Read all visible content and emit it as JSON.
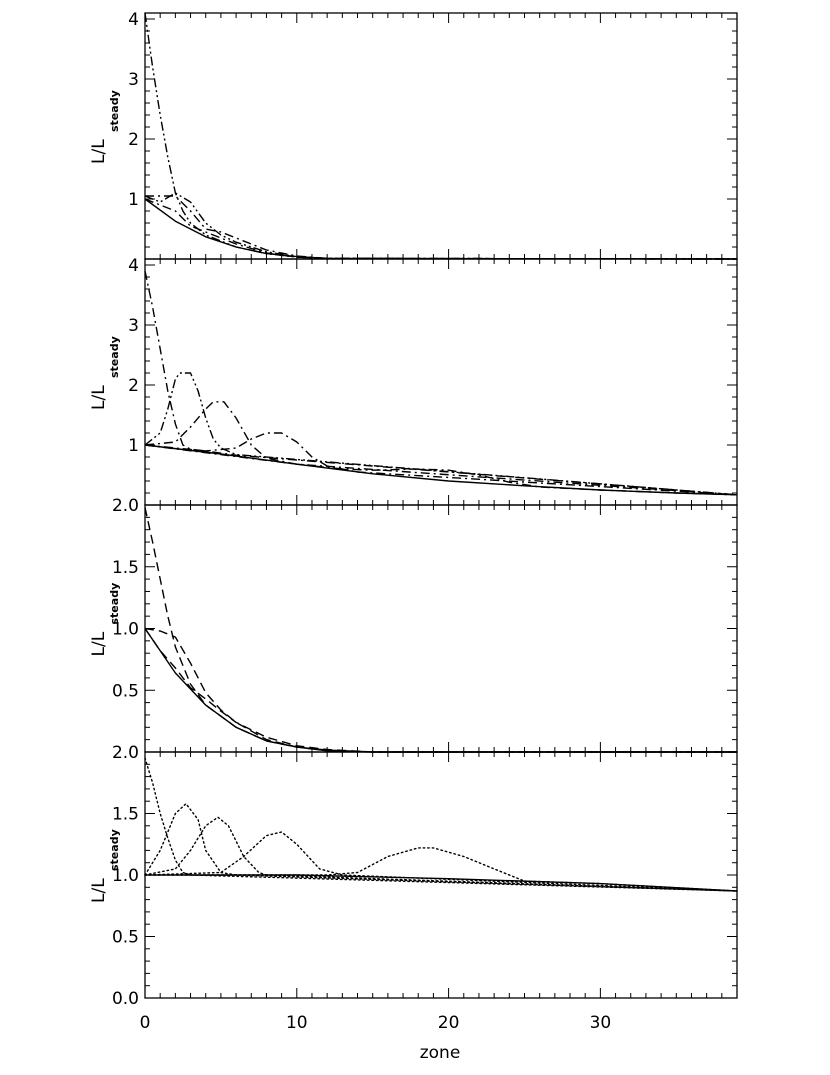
{
  "chart_data": {
    "type": "line",
    "xlabel": "zone",
    "xlim": [
      0,
      39
    ],
    "x_ticks": [
      0,
      10,
      20,
      30
    ],
    "panels": [
      {
        "ylabel": "L/L",
        "ylabel_sub": "steady",
        "ylim": [
          0,
          4.1
        ],
        "y_ticks": [
          "1",
          "2",
          "3",
          "4"
        ],
        "y_tick_values": [
          1,
          2,
          3,
          4
        ],
        "series": [
          {
            "style": "solid",
            "points": [
              [
                0,
                1.0
              ],
              [
                2,
                0.63
              ],
              [
                4,
                0.37
              ],
              [
                6,
                0.2
              ],
              [
                8,
                0.09
              ],
              [
                10,
                0.04
              ],
              [
                12,
                0.01
              ],
              [
                39,
                0.0
              ]
            ]
          },
          {
            "style": "dash-dot",
            "points": [
              [
                0,
                1.0
              ],
              [
                1,
                0.9
              ],
              [
                2,
                0.8
              ],
              [
                3,
                0.55
              ],
              [
                4,
                0.45
              ],
              [
                6,
                0.25
              ],
              [
                8,
                0.1
              ],
              [
                10,
                0.03
              ],
              [
                12,
                0.01
              ],
              [
                39,
                0.0
              ]
            ]
          },
          {
            "style": "dash-dot",
            "points": [
              [
                0,
                1.05
              ],
              [
                1,
                1.05
              ],
              [
                2,
                1.05
              ],
              [
                3,
                0.8
              ],
              [
                4,
                0.5
              ],
              [
                5,
                0.45
              ],
              [
                6,
                0.35
              ],
              [
                8,
                0.15
              ],
              [
                10,
                0.05
              ],
              [
                12,
                0.01
              ],
              [
                39,
                0.0
              ]
            ]
          },
          {
            "style": "dash-dot-dot",
            "points": [
              [
                0,
                1.05
              ],
              [
                1,
                0.95
              ],
              [
                2,
                1.1
              ],
              [
                3,
                0.95
              ],
              [
                4,
                0.6
              ],
              [
                5,
                0.4
              ],
              [
                6,
                0.28
              ],
              [
                8,
                0.12
              ],
              [
                10,
                0.04
              ],
              [
                12,
                0.01
              ],
              [
                39,
                0.0
              ]
            ]
          },
          {
            "style": "dash-dot-dot",
            "points": [
              [
                0,
                4.1
              ],
              [
                0.5,
                3.2
              ],
              [
                1,
                2.4
              ],
              [
                1.5,
                1.7
              ],
              [
                2,
                1.1
              ],
              [
                2.5,
                0.8
              ],
              [
                3,
                0.6
              ],
              [
                4,
                0.4
              ],
              [
                6,
                0.2
              ],
              [
                8,
                0.09
              ],
              [
                10,
                0.03
              ],
              [
                12,
                0.01
              ],
              [
                39,
                0.0
              ]
            ]
          }
        ]
      },
      {
        "ylabel": "L/L",
        "ylabel_sub": "steady",
        "ylim": [
          0,
          4.1
        ],
        "y_ticks": [
          "1",
          "2",
          "3",
          "4"
        ],
        "y_tick_values": [
          1,
          2,
          3,
          4
        ],
        "series": [
          {
            "style": "solid",
            "points": [
              [
                0,
                1.0
              ],
              [
                5,
                0.85
              ],
              [
                10,
                0.68
              ],
              [
                15,
                0.52
              ],
              [
                20,
                0.4
              ],
              [
                25,
                0.32
              ],
              [
                30,
                0.25
              ],
              [
                35,
                0.2
              ],
              [
                39,
                0.17
              ]
            ]
          },
          {
            "style": "dash-dot",
            "points": [
              [
                0,
                3.9
              ],
              [
                0.5,
                3.3
              ],
              [
                1,
                2.6
              ],
              [
                1.5,
                1.9
              ],
              [
                2,
                1.35
              ],
              [
                2.5,
                1.0
              ],
              [
                3,
                0.93
              ],
              [
                4,
                0.9
              ],
              [
                6,
                0.83
              ],
              [
                39,
                0.17
              ]
            ]
          },
          {
            "style": "dash-dot-dot",
            "points": [
              [
                0,
                1.0
              ],
              [
                1,
                1.2
              ],
              [
                1.5,
                1.6
              ],
              [
                2,
                2.1
              ],
              [
                2.3,
                2.2
              ],
              [
                3,
                2.2
              ],
              [
                3.5,
                1.9
              ],
              [
                4,
                1.45
              ],
              [
                4.5,
                1.1
              ],
              [
                5,
                0.95
              ],
              [
                6,
                0.84
              ],
              [
                39,
                0.17
              ]
            ]
          },
          {
            "style": "dash-dot",
            "points": [
              [
                0,
                1.0
              ],
              [
                2,
                1.05
              ],
              [
                3,
                1.3
              ],
              [
                4,
                1.6
              ],
              [
                4.5,
                1.72
              ],
              [
                5.2,
                1.72
              ],
              [
                6,
                1.45
              ],
              [
                7,
                1.0
              ],
              [
                8,
                0.78
              ],
              [
                10,
                0.68
              ],
              [
                39,
                0.17
              ]
            ]
          },
          {
            "style": "dash-dot",
            "points": [
              [
                0,
                1.0
              ],
              [
                4,
                0.9
              ],
              [
                6,
                0.95
              ],
              [
                7,
                1.1
              ],
              [
                8,
                1.2
              ],
              [
                9,
                1.2
              ],
              [
                10,
                1.05
              ],
              [
                11,
                0.8
              ],
              [
                12,
                0.65
              ],
              [
                14,
                0.55
              ],
              [
                39,
                0.17
              ]
            ]
          },
          {
            "style": "dash-dot",
            "points": [
              [
                0,
                1.0
              ],
              [
                10,
                0.68
              ],
              [
                13,
                0.6
              ],
              [
                15,
                0.58
              ],
              [
                18,
                0.6
              ],
              [
                20,
                0.58
              ],
              [
                22,
                0.5
              ],
              [
                24,
                0.38
              ],
              [
                26,
                0.3
              ],
              [
                30,
                0.25
              ],
              [
                35,
                0.2
              ],
              [
                39,
                0.17
              ]
            ]
          }
        ]
      },
      {
        "ylabel": "L/L",
        "ylabel_sub": "steady",
        "ylim": [
          0,
          2.0
        ],
        "y_ticks": [
          "0.5",
          "1.0",
          "1.5",
          "2.0"
        ],
        "y_tick_values": [
          0.5,
          1.0,
          1.5,
          2.0
        ],
        "series": [
          {
            "style": "solid",
            "points": [
              [
                0,
                1.0
              ],
              [
                2,
                0.64
              ],
              [
                4,
                0.38
              ],
              [
                6,
                0.2
              ],
              [
                8,
                0.09
              ],
              [
                10,
                0.04
              ],
              [
                12,
                0.015
              ],
              [
                15,
                0.0
              ],
              [
                39,
                0.0
              ]
            ]
          },
          {
            "style": "dash",
            "points": [
              [
                0,
                1.0
              ],
              [
                1,
                0.98
              ],
              [
                2,
                0.93
              ],
              [
                3,
                0.72
              ],
              [
                4,
                0.48
              ],
              [
                5,
                0.34
              ],
              [
                6,
                0.24
              ],
              [
                8,
                0.1
              ],
              [
                10,
                0.04
              ],
              [
                12,
                0.01
              ],
              [
                15,
                0.0
              ],
              [
                39,
                0.0
              ]
            ]
          },
          {
            "style": "dash",
            "points": [
              [
                0,
                1.98
              ],
              [
                0.5,
                1.7
              ],
              [
                1,
                1.4
              ],
              [
                1.5,
                1.1
              ],
              [
                2,
                0.85
              ],
              [
                3,
                0.55
              ],
              [
                4,
                0.38
              ],
              [
                6,
                0.2
              ],
              [
                8,
                0.09
              ],
              [
                10,
                0.04
              ],
              [
                12,
                0.01
              ],
              [
                15,
                0.0
              ],
              [
                39,
                0.0
              ]
            ]
          },
          {
            "style": "dash",
            "points": [
              [
                0,
                1.0
              ],
              [
                1,
                0.82
              ],
              [
                2,
                0.68
              ],
              [
                3,
                0.52
              ],
              [
                4,
                0.43
              ],
              [
                5,
                0.33
              ],
              [
                6,
                0.24
              ],
              [
                8,
                0.12
              ],
              [
                10,
                0.05
              ],
              [
                12,
                0.02
              ],
              [
                15,
                0.0
              ],
              [
                39,
                0.0
              ]
            ]
          }
        ]
      },
      {
        "ylabel": "L/L",
        "ylabel_sub": "steady",
        "ylim": [
          0,
          2.0
        ],
        "y_ticks": [
          "0.0",
          "0.5",
          "1.0",
          "1.5",
          "2.0"
        ],
        "y_tick_values": [
          0.0,
          0.5,
          1.0,
          1.5,
          2.0
        ],
        "series": [
          {
            "style": "solid",
            "points": [
              [
                0,
                1.0
              ],
              [
                10,
                1.0
              ],
              [
                20,
                0.97
              ],
              [
                30,
                0.93
              ],
              [
                39,
                0.87
              ]
            ]
          },
          {
            "style": "dot",
            "points": [
              [
                0,
                1.95
              ],
              [
                0.5,
                1.75
              ],
              [
                1,
                1.5
              ],
              [
                1.5,
                1.3
              ],
              [
                2,
                1.12
              ],
              [
                2.5,
                1.02
              ],
              [
                3,
                1.0
              ],
              [
                39,
                0.87
              ]
            ]
          },
          {
            "style": "dot",
            "points": [
              [
                0,
                1.0
              ],
              [
                1,
                1.2
              ],
              [
                2,
                1.5
              ],
              [
                2.7,
                1.58
              ],
              [
                3.5,
                1.45
              ],
              [
                4,
                1.2
              ],
              [
                5,
                1.02
              ],
              [
                6,
                1.0
              ],
              [
                39,
                0.87
              ]
            ]
          },
          {
            "style": "dot",
            "points": [
              [
                0,
                1.0
              ],
              [
                2,
                1.05
              ],
              [
                3,
                1.2
              ],
              [
                4,
                1.4
              ],
              [
                4.8,
                1.47
              ],
              [
                5.5,
                1.4
              ],
              [
                6.5,
                1.15
              ],
              [
                7.5,
                1.02
              ],
              [
                8,
                1.0
              ],
              [
                39,
                0.87
              ]
            ]
          },
          {
            "style": "dot",
            "points": [
              [
                0,
                1.0
              ],
              [
                5,
                1.02
              ],
              [
                6.5,
                1.15
              ],
              [
                8,
                1.32
              ],
              [
                9,
                1.35
              ],
              [
                10,
                1.25
              ],
              [
                11.5,
                1.05
              ],
              [
                13,
                1.0
              ],
              [
                39,
                0.87
              ]
            ]
          },
          {
            "style": "dot",
            "points": [
              [
                0,
                1.0
              ],
              [
                12,
                1.0
              ],
              [
                14,
                1.02
              ],
              [
                16,
                1.15
              ],
              [
                18,
                1.22
              ],
              [
                19,
                1.22
              ],
              [
                21,
                1.15
              ],
              [
                23,
                1.05
              ],
              [
                25,
                0.95
              ],
              [
                30,
                0.93
              ],
              [
                39,
                0.87
              ]
            ]
          }
        ]
      }
    ]
  }
}
